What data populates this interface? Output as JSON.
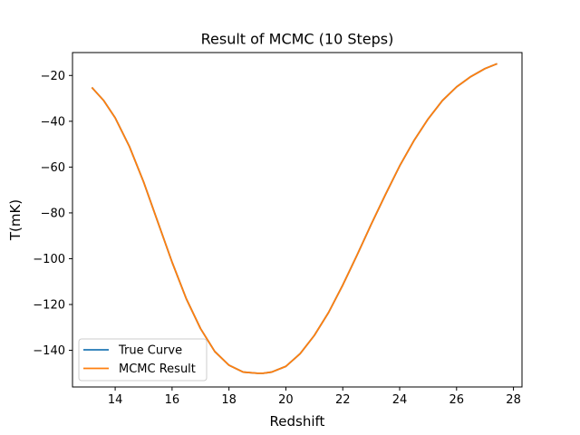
{
  "chart_data": {
    "type": "line",
    "title": "Result of MCMC (10 Steps)",
    "xlabel": "Redshift",
    "ylabel": "T(mK)",
    "xlim": [
      12.5,
      28.3
    ],
    "ylim": [
      -156,
      -10
    ],
    "xticks": [
      14,
      16,
      18,
      20,
      22,
      24,
      26,
      28
    ],
    "yticks": [
      -140,
      -120,
      -100,
      -80,
      -60,
      -40,
      -20
    ],
    "xtick_labels": [
      "14",
      "16",
      "18",
      "20",
      "22",
      "24",
      "26",
      "28"
    ],
    "ytick_labels": [
      "−140",
      "−120",
      "−100",
      "−80",
      "−60",
      "−40",
      "−20"
    ],
    "grid": false,
    "legend_position": "lower-left",
    "series": [
      {
        "name": "True Curve",
        "color": "#1f77b4",
        "x": [
          13.2,
          13.6,
          14.0,
          14.5,
          15.0,
          15.5,
          16.0,
          16.5,
          17.0,
          17.5,
          18.0,
          18.5,
          19.0,
          19.2,
          19.5,
          20.0,
          20.5,
          21.0,
          21.5,
          22.0,
          22.5,
          23.0,
          23.5,
          24.0,
          24.5,
          25.0,
          25.5,
          26.0,
          26.5,
          27.0,
          27.4
        ],
        "y": [
          -25.5,
          -31,
          -38.5,
          -51,
          -66.5,
          -84,
          -101.5,
          -117.5,
          -130.5,
          -140.5,
          -146.5,
          -149.5,
          -150,
          -150,
          -149.5,
          -147,
          -141.5,
          -133.5,
          -123.5,
          -111.5,
          -98.5,
          -85,
          -72,
          -59.5,
          -48.5,
          -39,
          -31,
          -25,
          -20.5,
          -17,
          -15
        ]
      },
      {
        "name": "MCMC Result",
        "color": "#ff7f0e",
        "x": [
          13.2,
          13.6,
          14.0,
          14.5,
          15.0,
          15.5,
          16.0,
          16.5,
          17.0,
          17.5,
          18.0,
          18.5,
          19.0,
          19.2,
          19.5,
          20.0,
          20.5,
          21.0,
          21.5,
          22.0,
          22.5,
          23.0,
          23.5,
          24.0,
          24.5,
          25.0,
          25.5,
          26.0,
          26.5,
          27.0,
          27.4
        ],
        "y": [
          -25.5,
          -31,
          -38.5,
          -51,
          -66.5,
          -84,
          -101.5,
          -117.5,
          -130.5,
          -140.5,
          -146.5,
          -149.5,
          -150,
          -150,
          -149.5,
          -147,
          -141.5,
          -133.5,
          -123.5,
          -111.5,
          -98.5,
          -85,
          -72,
          -59.5,
          -48.5,
          -39,
          -31,
          -25,
          -20.5,
          -17,
          -15
        ]
      }
    ]
  }
}
